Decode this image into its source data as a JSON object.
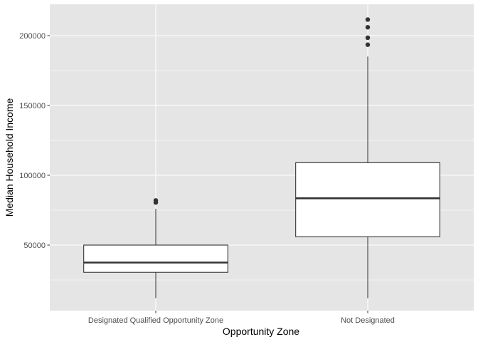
{
  "chart_data": {
    "type": "boxplot",
    "title": "",
    "xlabel": "Opportunity Zone",
    "ylabel": "Median Household Income",
    "ylim": [
      0,
      220000
    ],
    "yticks": [
      50000,
      100000,
      150000,
      200000
    ],
    "ytick_labels": [
      "50000",
      "100000",
      "150000",
      "200000"
    ],
    "grid": true,
    "theme": {
      "panel_bg": "#e5e5e5",
      "grid_color": "#ffffff",
      "box_fill": "#ffffff",
      "line_color": "#333333",
      "text_color": "#4d4d4d"
    },
    "categories": [
      "Designated Qualified Opportunity Zone",
      "Not Designated"
    ],
    "boxes": [
      {
        "category": "Designated Qualified Opportunity Zone",
        "whisker_low": 12000,
        "q1": 30500,
        "median": 37500,
        "q3": 50000,
        "whisker_high": 76000,
        "outliers": [
          80500,
          82000
        ]
      },
      {
        "category": "Not Designated",
        "whisker_low": 12000,
        "q1": 56000,
        "median": 83500,
        "q3": 109000,
        "whisker_high": 185000,
        "outliers": [
          193500,
          198500,
          206000,
          211500
        ]
      }
    ]
  }
}
